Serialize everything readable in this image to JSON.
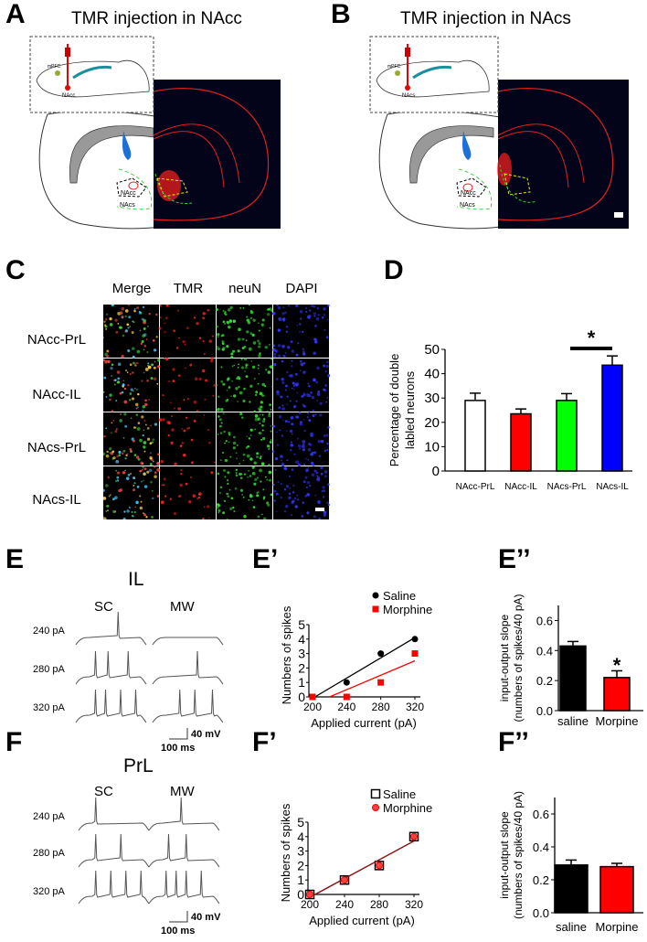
{
  "panels": {
    "A": {
      "label": "A",
      "title": "TMR injection in NAcc",
      "inset_labels": [
        "mPFC",
        "NAcc"
      ],
      "schematic_labels": [
        "NAcc",
        "NAcs"
      ]
    },
    "B": {
      "label": "B",
      "title": "TMR injection in NAcs",
      "inset_labels": [
        "mPFC",
        "NAcs"
      ],
      "schematic_labels": [
        "NAcc",
        "NAcs"
      ]
    },
    "C": {
      "label": "C",
      "columns": [
        "Merge",
        "TMR",
        "neuN",
        "DAPI"
      ],
      "rows": [
        "NAcc-PrL",
        "NAcc-IL",
        "NAcs-PrL",
        "NAcs-IL"
      ]
    },
    "D": {
      "label": "D"
    },
    "E": {
      "label": "E",
      "region": "IL",
      "conditions": [
        "SC",
        "MW"
      ],
      "currents": [
        "240 pA",
        "280 pA",
        "320 pA"
      ],
      "scale_v": "40 mV",
      "scale_t": "100 ms"
    },
    "E1": {
      "label": "E’"
    },
    "E2": {
      "label": "E’’"
    },
    "F": {
      "label": "F",
      "region": "PrL",
      "conditions": [
        "SC",
        "MW"
      ],
      "currents": [
        "240 pA",
        "280 pA",
        "320 pA"
      ],
      "scale_v": "40 mV",
      "scale_t": "100 ms"
    },
    "F1": {
      "label": "F’"
    },
    "F2": {
      "label": "F’’"
    }
  },
  "colors": {
    "red": "#ff0000",
    "green": "#00ff00",
    "blue": "#0000ff",
    "black": "#000000",
    "darkred": "#8b1a1a"
  },
  "chart_data": [
    {
      "id": "D",
      "type": "bar",
      "categories": [
        "NAcc-PrL",
        "NAcc-IL",
        "NAcs-PrL",
        "NAcs-IL"
      ],
      "values": [
        29,
        23.5,
        29,
        43.5
      ],
      "errors": [
        3,
        2,
        2.8,
        3.8
      ],
      "colors": [
        "#ffffff",
        "#ff0000",
        "#00ff00",
        "#0000ff"
      ],
      "ylabel": "Percentage of double labled neurons",
      "ylim": [
        0,
        50
      ],
      "yticks": [
        0,
        10,
        20,
        30,
        40,
        50
      ],
      "annotation": {
        "text": "*",
        "between": [
          "NAcs-PrL",
          "NAcs-IL"
        ]
      }
    },
    {
      "id": "E1",
      "type": "scatter",
      "x": [
        200,
        240,
        280,
        320
      ],
      "xticks": [
        200,
        240,
        280,
        320
      ],
      "xlim": [
        200,
        320
      ],
      "ylim": [
        0,
        5
      ],
      "yticks": [
        0,
        1,
        2,
        3,
        4,
        5
      ],
      "xlabel": "Applied current (pA)",
      "ylabel": "Numbers of spikes",
      "legend": "top-right",
      "series": [
        {
          "name": "Saline",
          "values": [
            0,
            1,
            3,
            4
          ],
          "color": "#000000",
          "marker": "circle",
          "fit": [
            0.035,
            -7.1
          ]
        },
        {
          "name": "Morphine",
          "values": [
            0,
            0,
            1,
            3
          ],
          "color": "#ff0000",
          "marker": "square",
          "fit": [
            0.025,
            -5.5
          ]
        }
      ]
    },
    {
      "id": "E2",
      "type": "bar",
      "categories": [
        "saline",
        "Morpine"
      ],
      "values": [
        0.43,
        0.22
      ],
      "errors": [
        0.03,
        0.045
      ],
      "colors": [
        "#000000",
        "#ff0000"
      ],
      "ylabel": "input-output slope (numbers of spikes/40 pA)",
      "ylim": [
        0,
        0.7
      ],
      "yticks": [
        0.0,
        0.2,
        0.4,
        0.6
      ],
      "annotation": {
        "text": "*",
        "on": "Morpine"
      }
    },
    {
      "id": "F1",
      "type": "scatter",
      "x": [
        200,
        240,
        280,
        320
      ],
      "xticks": [
        200,
        240,
        280,
        320
      ],
      "xlim": [
        200,
        320
      ],
      "ylim": [
        0,
        5
      ],
      "yticks": [
        0,
        1,
        2,
        3,
        4,
        5
      ],
      "xlabel": "Applied current (pA)",
      "ylabel": "Numbers of spikes",
      "legend": "top-right",
      "series": [
        {
          "name": "Saline",
          "values": [
            0,
            1,
            2,
            4
          ],
          "color": "#000000",
          "marker": "square-open",
          "fit": [
            0.0325,
            -6.7
          ]
        },
        {
          "name": "Morphine",
          "values": [
            0,
            1,
            2,
            4
          ],
          "color": "#ff0000",
          "marker": "circle-open",
          "fit": [
            0.0325,
            -6.7
          ]
        }
      ]
    },
    {
      "id": "F2",
      "type": "bar",
      "categories": [
        "saline",
        "Morpine"
      ],
      "values": [
        0.29,
        0.28
      ],
      "errors": [
        0.03,
        0.02
      ],
      "colors": [
        "#000000",
        "#ff0000"
      ],
      "ylabel": "input-output slope (numbers of spikes/40 pA)",
      "ylim": [
        0,
        0.7
      ],
      "yticks": [
        0.0,
        0.2,
        0.4,
        0.6
      ]
    }
  ]
}
